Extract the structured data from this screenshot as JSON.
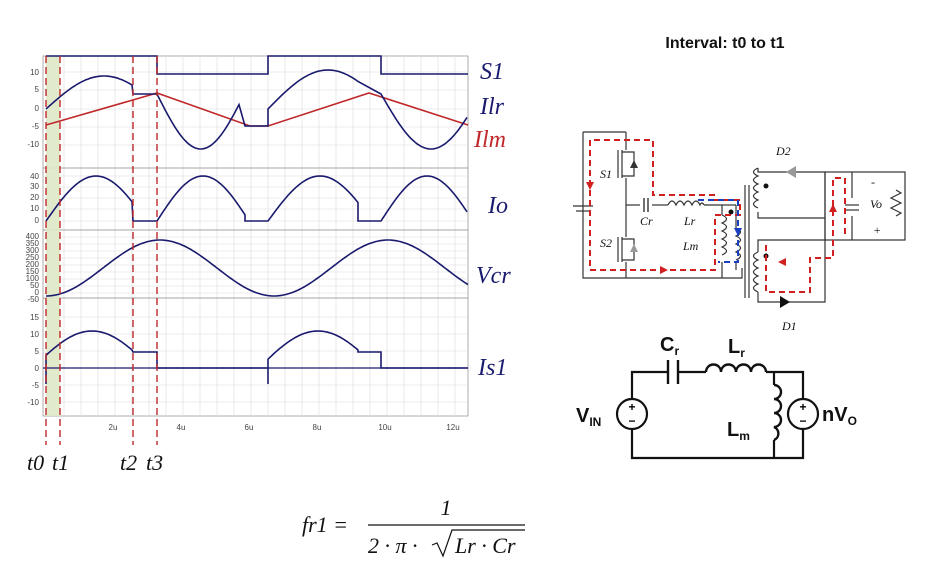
{
  "waveforms": {
    "labels": [
      "S1",
      "Ilr",
      "Ilm",
      "Io",
      "Vcr",
      "Is1"
    ],
    "colors": {
      "navy": "#1a1a6e",
      "red": "#c0282a",
      "grid": "#d9d9d9"
    },
    "y_ticks": {
      "current": [
        "10",
        "5",
        "0",
        "-5",
        "-10"
      ],
      "io": [
        "40",
        "30",
        "20",
        "10",
        "0"
      ],
      "vcr": [
        "400",
        "350",
        "300",
        "250",
        "200",
        "150",
        "100",
        "50",
        "0",
        "-50"
      ],
      "is1": [
        "15",
        "10",
        "5",
        "0",
        "-5",
        "-10"
      ]
    },
    "x_ticks": [
      "2u",
      "4u",
      "6u",
      "8u",
      "10u",
      "12u"
    ],
    "time_markers": [
      "t0",
      "t1",
      "t2",
      "t3"
    ]
  },
  "circuit": {
    "title": "Interval: t0 to t1",
    "labels": {
      "s1": "S1",
      "s2": "S2",
      "cr": "Cr",
      "lr": "Lr",
      "lm": "Lm",
      "d1": "D1",
      "d2": "D2",
      "vo": "Vo",
      "minus": "-",
      "plus": "+"
    }
  },
  "equivalent_circuit": {
    "cr": [
      "C",
      "r"
    ],
    "lr": [
      "L",
      "r"
    ],
    "lm": [
      "L",
      "m"
    ],
    "vin": [
      "V",
      "IN"
    ],
    "nvo": [
      "nV",
      "O"
    ],
    "plus": "+",
    "minus": "−"
  },
  "formula": {
    "lhs": "fr1 =",
    "numerator": "1",
    "denominator": "2 · π · ",
    "radicand": "Lr · Cr"
  }
}
